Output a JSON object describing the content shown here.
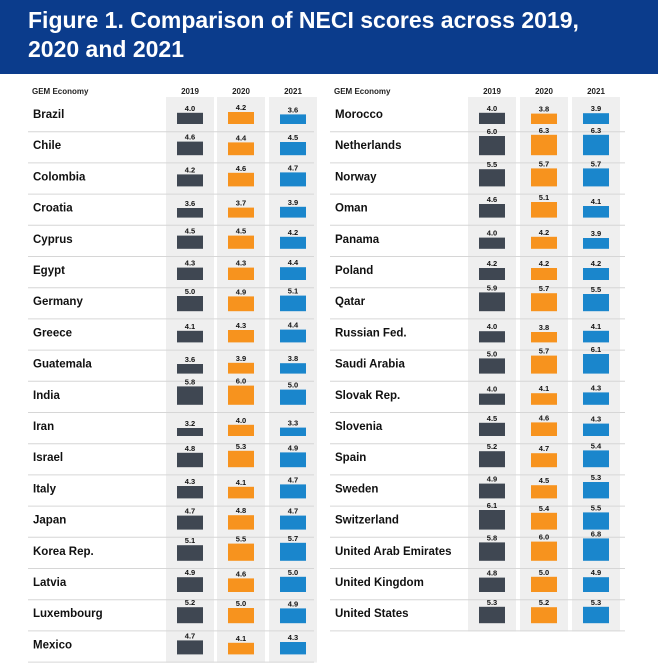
{
  "header": {
    "title": "Figure 1. Comparison of NECI scores across 2019, 2020 and 2021"
  },
  "colors": {
    "header_bg": "#0b3c8c",
    "2019": "#3f4752",
    "2020": "#f7931e",
    "2021": "#1a86cc",
    "column_bg": "#efefef",
    "row_divider": "#d6d6d6"
  },
  "chart_data": {
    "type": "table",
    "column_header": "GEM Economy",
    "years": [
      "2019",
      "2020",
      "2021"
    ],
    "tables": [
      {
        "rows": [
          {
            "country": "Brazil",
            "values": [
              4.0,
              4.2,
              3.6
            ]
          },
          {
            "country": "Chile",
            "values": [
              4.6,
              4.4,
              4.5
            ]
          },
          {
            "country": "Colombia",
            "values": [
              4.2,
              4.6,
              4.7
            ]
          },
          {
            "country": "Croatia",
            "values": [
              3.6,
              3.7,
              3.9
            ]
          },
          {
            "country": "Cyprus",
            "values": [
              4.5,
              4.5,
              4.2
            ]
          },
          {
            "country": "Egypt",
            "values": [
              4.3,
              4.3,
              4.4
            ]
          },
          {
            "country": "Germany",
            "values": [
              5.0,
              4.9,
              5.1
            ]
          },
          {
            "country": "Greece",
            "values": [
              4.1,
              4.3,
              4.4
            ]
          },
          {
            "country": "Guatemala",
            "values": [
              3.6,
              3.9,
              3.8
            ]
          },
          {
            "country": "India",
            "values": [
              5.8,
              6.0,
              5.0
            ]
          },
          {
            "country": "Iran",
            "values": [
              3.2,
              4.0,
              3.3
            ]
          },
          {
            "country": "Israel",
            "values": [
              4.8,
              5.3,
              4.9
            ]
          },
          {
            "country": "Italy",
            "values": [
              4.3,
              4.1,
              4.7
            ]
          },
          {
            "country": "Japan",
            "values": [
              4.7,
              4.8,
              4.7
            ]
          },
          {
            "country": "Korea Rep.",
            "values": [
              5.1,
              5.5,
              5.7
            ]
          },
          {
            "country": "Latvia",
            "values": [
              4.9,
              4.6,
              5.0
            ]
          },
          {
            "country": "Luxembourg",
            "values": [
              5.2,
              5.0,
              4.9
            ]
          },
          {
            "country": "Mexico",
            "values": [
              4.7,
              4.1,
              4.3
            ]
          }
        ]
      },
      {
        "rows": [
          {
            "country": "Morocco",
            "values": [
              4.0,
              3.8,
              3.9
            ]
          },
          {
            "country": "Netherlands",
            "values": [
              6.0,
              6.3,
              6.3
            ]
          },
          {
            "country": "Norway",
            "values": [
              5.5,
              5.7,
              5.7
            ]
          },
          {
            "country": "Oman",
            "values": [
              4.6,
              5.1,
              4.1
            ]
          },
          {
            "country": "Panama",
            "values": [
              4.0,
              4.2,
              3.9
            ]
          },
          {
            "country": "Poland",
            "values": [
              4.2,
              4.2,
              4.2
            ]
          },
          {
            "country": "Qatar",
            "values": [
              5.9,
              5.7,
              5.5
            ]
          },
          {
            "country": "Russian Fed.",
            "values": [
              4.0,
              3.8,
              4.1
            ]
          },
          {
            "country": "Saudi Arabia",
            "values": [
              5.0,
              5.7,
              6.1
            ]
          },
          {
            "country": "Slovak Rep.",
            "values": [
              4.0,
              4.1,
              4.3
            ]
          },
          {
            "country": "Slovenia",
            "values": [
              4.5,
              4.6,
              4.3
            ]
          },
          {
            "country": "Spain",
            "values": [
              5.2,
              4.7,
              5.4
            ]
          },
          {
            "country": "Sweden",
            "values": [
              4.9,
              4.5,
              5.3
            ]
          },
          {
            "country": "Switzerland",
            "values": [
              6.1,
              5.4,
              5.5
            ]
          },
          {
            "country": "United Arab Emirates",
            "values": [
              5.8,
              6.0,
              6.8
            ]
          },
          {
            "country": "United Kingdom",
            "values": [
              4.8,
              5.0,
              4.9
            ]
          },
          {
            "country": "United States",
            "values": [
              5.3,
              5.2,
              5.3
            ]
          }
        ]
      }
    ]
  }
}
